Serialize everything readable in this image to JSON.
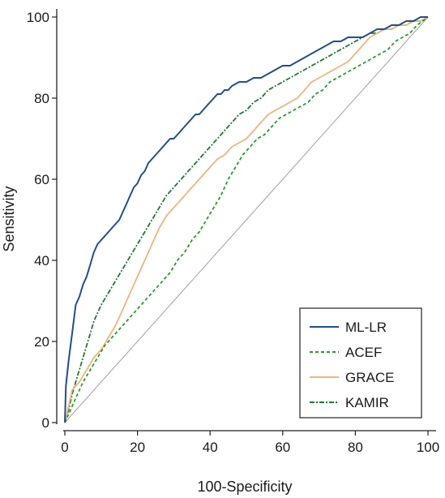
{
  "chart_data": {
    "type": "line",
    "xlabel": "100-Specificity",
    "ylabel": "Sensitivity",
    "xlim": [
      0,
      100
    ],
    "ylim": [
      0,
      100
    ],
    "x_ticks": [
      0,
      20,
      40,
      60,
      80,
      100
    ],
    "y_ticks": [
      0,
      20,
      40,
      60,
      80,
      100
    ],
    "grid": false,
    "legend_position": "bottom-right",
    "reference_line": [
      [
        0,
        0
      ],
      [
        100,
        100
      ]
    ],
    "series": [
      {
        "name": "ML-LR",
        "color": "#1f4e8f",
        "style": "solid",
        "points": [
          [
            0,
            0
          ],
          [
            0.3,
            9
          ],
          [
            1,
            15
          ],
          [
            2,
            22
          ],
          [
            3,
            29
          ],
          [
            4,
            31
          ],
          [
            5,
            34
          ],
          [
            6,
            36
          ],
          [
            7,
            39
          ],
          [
            8,
            42
          ],
          [
            9,
            44
          ],
          [
            10,
            45
          ],
          [
            11,
            46
          ],
          [
            12,
            47
          ],
          [
            13,
            48
          ],
          [
            14,
            49
          ],
          [
            15,
            50
          ],
          [
            16,
            52
          ],
          [
            17,
            54
          ],
          [
            18,
            56
          ],
          [
            19,
            58
          ],
          [
            20,
            59
          ],
          [
            21,
            61
          ],
          [
            22,
            62
          ],
          [
            23,
            64
          ],
          [
            24,
            65
          ],
          [
            25,
            66
          ],
          [
            26,
            67
          ],
          [
            27,
            68
          ],
          [
            28,
            69
          ],
          [
            29,
            70
          ],
          [
            30,
            70
          ],
          [
            31,
            71
          ],
          [
            32,
            72
          ],
          [
            33,
            73
          ],
          [
            34,
            74
          ],
          [
            35,
            75
          ],
          [
            36,
            76
          ],
          [
            37,
            76
          ],
          [
            38,
            77
          ],
          [
            39,
            78
          ],
          [
            40,
            79
          ],
          [
            41,
            80
          ],
          [
            42,
            81
          ],
          [
            43,
            81
          ],
          [
            44,
            82
          ],
          [
            45,
            82
          ],
          [
            46,
            83
          ],
          [
            48,
            84
          ],
          [
            50,
            84
          ],
          [
            52,
            85
          ],
          [
            54,
            85
          ],
          [
            56,
            86
          ],
          [
            58,
            87
          ],
          [
            60,
            88
          ],
          [
            62,
            88
          ],
          [
            64,
            89
          ],
          [
            66,
            90
          ],
          [
            68,
            91
          ],
          [
            70,
            92
          ],
          [
            72,
            93
          ],
          [
            74,
            94
          ],
          [
            76,
            94
          ],
          [
            78,
            95
          ],
          [
            80,
            95
          ],
          [
            82,
            95
          ],
          [
            84,
            96
          ],
          [
            86,
            97
          ],
          [
            88,
            97
          ],
          [
            90,
            98
          ],
          [
            92,
            98
          ],
          [
            94,
            99
          ],
          [
            96,
            99
          ],
          [
            98,
            100
          ],
          [
            100,
            100
          ]
        ]
      },
      {
        "name": "ACEF",
        "color": "#22a022",
        "style": "dashed",
        "points": [
          [
            0,
            0
          ],
          [
            1,
            2
          ],
          [
            3,
            6
          ],
          [
            5,
            10
          ],
          [
            7,
            13
          ],
          [
            9,
            16
          ],
          [
            11,
            19
          ],
          [
            13,
            21
          ],
          [
            15,
            23
          ],
          [
            17,
            25
          ],
          [
            19,
            27
          ],
          [
            21,
            29
          ],
          [
            23,
            31
          ],
          [
            25,
            33
          ],
          [
            27,
            35
          ],
          [
            29,
            37
          ],
          [
            31,
            40
          ],
          [
            33,
            42
          ],
          [
            35,
            45
          ],
          [
            37,
            47
          ],
          [
            39,
            50
          ],
          [
            41,
            53
          ],
          [
            43,
            56
          ],
          [
            45,
            60
          ],
          [
            47,
            63
          ],
          [
            49,
            66
          ],
          [
            51,
            68
          ],
          [
            53,
            70
          ],
          [
            55,
            71
          ],
          [
            57,
            73
          ],
          [
            59,
            75
          ],
          [
            61,
            76
          ],
          [
            63,
            77
          ],
          [
            65,
            78
          ],
          [
            67,
            79
          ],
          [
            69,
            81
          ],
          [
            71,
            82
          ],
          [
            73,
            84
          ],
          [
            75,
            85
          ],
          [
            77,
            86
          ],
          [
            79,
            87
          ],
          [
            81,
            88
          ],
          [
            83,
            89
          ],
          [
            85,
            90
          ],
          [
            87,
            91
          ],
          [
            89,
            92
          ],
          [
            91,
            94
          ],
          [
            93,
            95
          ],
          [
            95,
            96
          ],
          [
            97,
            98
          ],
          [
            100,
            100
          ]
        ]
      },
      {
        "name": "GRACE",
        "color": "#f0b47a",
        "style": "solid",
        "points": [
          [
            0,
            0
          ],
          [
            1,
            4
          ],
          [
            2,
            8
          ],
          [
            4,
            10
          ],
          [
            6,
            13
          ],
          [
            8,
            16
          ],
          [
            10,
            18
          ],
          [
            12,
            21
          ],
          [
            14,
            24
          ],
          [
            16,
            28
          ],
          [
            18,
            32
          ],
          [
            20,
            36
          ],
          [
            22,
            40
          ],
          [
            24,
            44
          ],
          [
            26,
            48
          ],
          [
            28,
            51
          ],
          [
            30,
            53
          ],
          [
            32,
            55
          ],
          [
            34,
            57
          ],
          [
            36,
            59
          ],
          [
            38,
            61
          ],
          [
            40,
            63
          ],
          [
            42,
            65
          ],
          [
            44,
            66
          ],
          [
            46,
            68
          ],
          [
            48,
            69
          ],
          [
            50,
            70
          ],
          [
            52,
            72
          ],
          [
            54,
            74
          ],
          [
            56,
            76
          ],
          [
            58,
            77
          ],
          [
            60,
            78
          ],
          [
            62,
            79
          ],
          [
            64,
            80
          ],
          [
            66,
            82
          ],
          [
            68,
            84
          ],
          [
            70,
            85
          ],
          [
            72,
            86
          ],
          [
            74,
            87
          ],
          [
            76,
            88
          ],
          [
            78,
            89
          ],
          [
            80,
            91
          ],
          [
            82,
            93
          ],
          [
            84,
            95
          ],
          [
            86,
            96
          ],
          [
            88,
            97
          ],
          [
            90,
            97
          ],
          [
            92,
            98
          ],
          [
            94,
            98
          ],
          [
            96,
            99
          ],
          [
            98,
            99
          ],
          [
            100,
            100
          ]
        ]
      },
      {
        "name": "KAMIR",
        "color": "#1e7a2e",
        "style": "dashdot",
        "points": [
          [
            0,
            0
          ],
          [
            1,
            3
          ],
          [
            2,
            7
          ],
          [
            3,
            10
          ],
          [
            4,
            13
          ],
          [
            5,
            16
          ],
          [
            6,
            19
          ],
          [
            7,
            22
          ],
          [
            8,
            25
          ],
          [
            9,
            27
          ],
          [
            10,
            29
          ],
          [
            12,
            32
          ],
          [
            14,
            35
          ],
          [
            16,
            38
          ],
          [
            18,
            41
          ],
          [
            20,
            44
          ],
          [
            22,
            47
          ],
          [
            24,
            50
          ],
          [
            26,
            53
          ],
          [
            28,
            56
          ],
          [
            30,
            58
          ],
          [
            32,
            60
          ],
          [
            34,
            62
          ],
          [
            36,
            64
          ],
          [
            38,
            66
          ],
          [
            40,
            68
          ],
          [
            42,
            70
          ],
          [
            44,
            72
          ],
          [
            46,
            74
          ],
          [
            48,
            76
          ],
          [
            50,
            77
          ],
          [
            52,
            79
          ],
          [
            54,
            80
          ],
          [
            56,
            82
          ],
          [
            58,
            83
          ],
          [
            60,
            84
          ],
          [
            62,
            85
          ],
          [
            64,
            86
          ],
          [
            66,
            87
          ],
          [
            68,
            88
          ],
          [
            70,
            89
          ],
          [
            72,
            90
          ],
          [
            74,
            91
          ],
          [
            76,
            92
          ],
          [
            78,
            93
          ],
          [
            80,
            94
          ],
          [
            82,
            95
          ],
          [
            84,
            96
          ],
          [
            86,
            96
          ],
          [
            88,
            97
          ],
          [
            90,
            97
          ],
          [
            92,
            98
          ],
          [
            94,
            98
          ],
          [
            96,
            99
          ],
          [
            98,
            99
          ],
          [
            100,
            100
          ]
        ]
      }
    ]
  }
}
